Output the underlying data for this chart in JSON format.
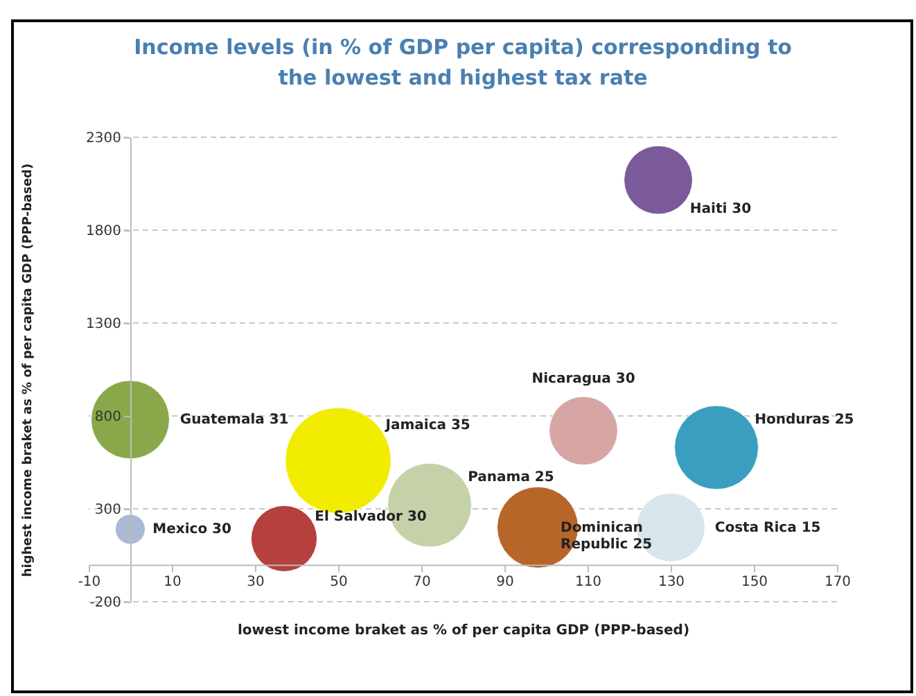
{
  "chart_data": {
    "type": "bubble",
    "title": "Income levels (in % of GDP per capita) corresponding to the lowest and highest tax rate",
    "xlabel": "lowest income braket as % of per capita GDP (PPP-based)",
    "ylabel": "highest income braket as % of per capita GDP (PPP-based)",
    "xlim": [
      -10,
      170
    ],
    "xticks": [
      -10,
      10,
      30,
      50,
      70,
      90,
      110,
      130,
      150,
      170
    ],
    "ylim": [
      -200,
      2300
    ],
    "yticks": [
      -200,
      300,
      800,
      1300,
      1800,
      2300
    ],
    "grid": "y",
    "legend": false,
    "series": [
      {
        "name": "Mexico 30",
        "color": "#a9b9d6",
        "x": [
          0
        ],
        "values": [
          190
        ],
        "sizes": [
          0.08
        ]
      },
      {
        "name": "Guatemala 31",
        "color": "#8aa84a",
        "x": [
          0
        ],
        "values": [
          780
        ],
        "sizes": [
          0.55
        ]
      },
      {
        "name": "El Salvador 30",
        "color": "#b5403e",
        "x": [
          37
        ],
        "values": [
          140
        ],
        "sizes": [
          0.39
        ]
      },
      {
        "name": "Jamaica 35",
        "color": "#f2ec00",
        "x": [
          50
        ],
        "values": [
          560
        ],
        "sizes": [
          1
        ]
      },
      {
        "name": "Panama 25",
        "color": "#c5d1a8",
        "x": [
          72
        ],
        "values": [
          320
        ],
        "sizes": [
          0.63
        ]
      },
      {
        "name": "Haiti 30",
        "color": "#7a5a9a",
        "x": [
          127
        ],
        "values": [
          2070
        ],
        "sizes": [
          0.42
        ]
      },
      {
        "name": "Nicaragua 30",
        "color": "#d8a5a5",
        "x": [
          109
        ],
        "values": [
          720
        ],
        "sizes": [
          0.42
        ]
      },
      {
        "name": "Honduras 25",
        "color": "#3a9ec0",
        "x": [
          141
        ],
        "values": [
          630
        ],
        "sizes": [
          0.63
        ]
      },
      {
        "name": "Dominican Republic 25",
        "color": "#b8652a",
        "x": [
          98
        ],
        "values": [
          200
        ],
        "sizes": [
          0.59
        ]
      },
      {
        "name": "Costa Rica 15",
        "color": "#d6e6ea",
        "x": [
          130
        ],
        "values": [
          200
        ],
        "sizes": [
          0.42
        ]
      }
    ]
  }
}
